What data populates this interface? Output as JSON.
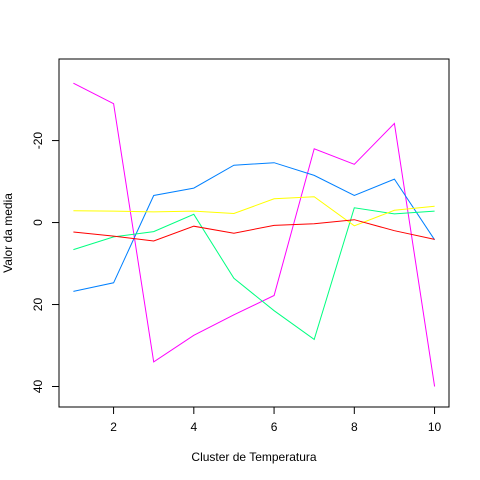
{
  "chart_data": {
    "type": "line",
    "title": "",
    "xlabel": "Cluster de Temperatura",
    "ylabel": "Valor da media",
    "x": [
      1,
      2,
      3,
      4,
      5,
      6,
      7,
      8,
      9,
      10
    ],
    "xlim": [
      0.64,
      10.36
    ],
    "ylim": [
      45.0,
      -39.9
    ],
    "y_reversed": true,
    "x_ticks": [
      2,
      4,
      6,
      8,
      10
    ],
    "y_ticks": [
      -20,
      0,
      20,
      40
    ],
    "grid": false,
    "legend": "none",
    "series": [
      {
        "color": "#ff00ff",
        "values": [
          -34.0,
          -29.0,
          34.0,
          27.5,
          22.5,
          17.8,
          -18.0,
          -14.2,
          -24.2,
          40.0
        ]
      },
      {
        "color": "#0080ff",
        "values": [
          16.8,
          14.7,
          -6.6,
          -8.4,
          -14.0,
          -14.6,
          -11.5,
          -6.6,
          -10.6,
          4.2
        ]
      },
      {
        "color": "#00ff80",
        "values": [
          6.6,
          3.5,
          2.2,
          -2.0,
          13.6,
          21.5,
          28.5,
          -3.6,
          -2.1,
          -2.8
        ]
      },
      {
        "color": "#ffff00",
        "values": [
          -2.9,
          -2.8,
          -2.6,
          -2.8,
          -2.2,
          -5.8,
          -6.3,
          0.8,
          -3.0,
          -4.0
        ]
      },
      {
        "color": "#ff0000",
        "values": [
          2.3,
          3.3,
          4.5,
          0.9,
          2.6,
          0.7,
          0.3,
          -0.7,
          2.0,
          4.1
        ]
      }
    ]
  }
}
